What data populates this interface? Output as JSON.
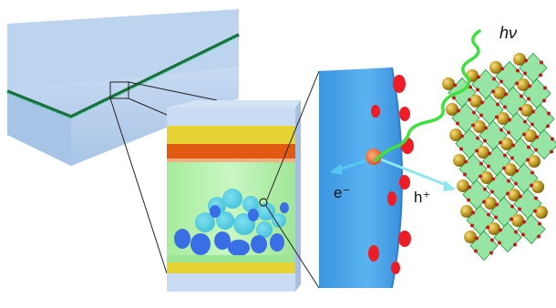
{
  "labels": {
    "photon": "hν",
    "electron": "e⁻",
    "hole": "h⁺"
  },
  "colors": {
    "substrate": "#bcd3ee",
    "device_green": "#b7f0b0",
    "electrode_yellow": "#e6d335",
    "layer_orange": "#e05a12",
    "mesoporous_blue": "#4aa6ea",
    "dye_red": "#ee1c24",
    "electron_arrow": "#55c8f0",
    "hole_arrow": "#8ee8f0",
    "photon_wave": "#40e040",
    "perovskite_green": "#3fcf5a",
    "lead_gold": "#c7a227",
    "oxygen_red": "#c41a1a"
  }
}
